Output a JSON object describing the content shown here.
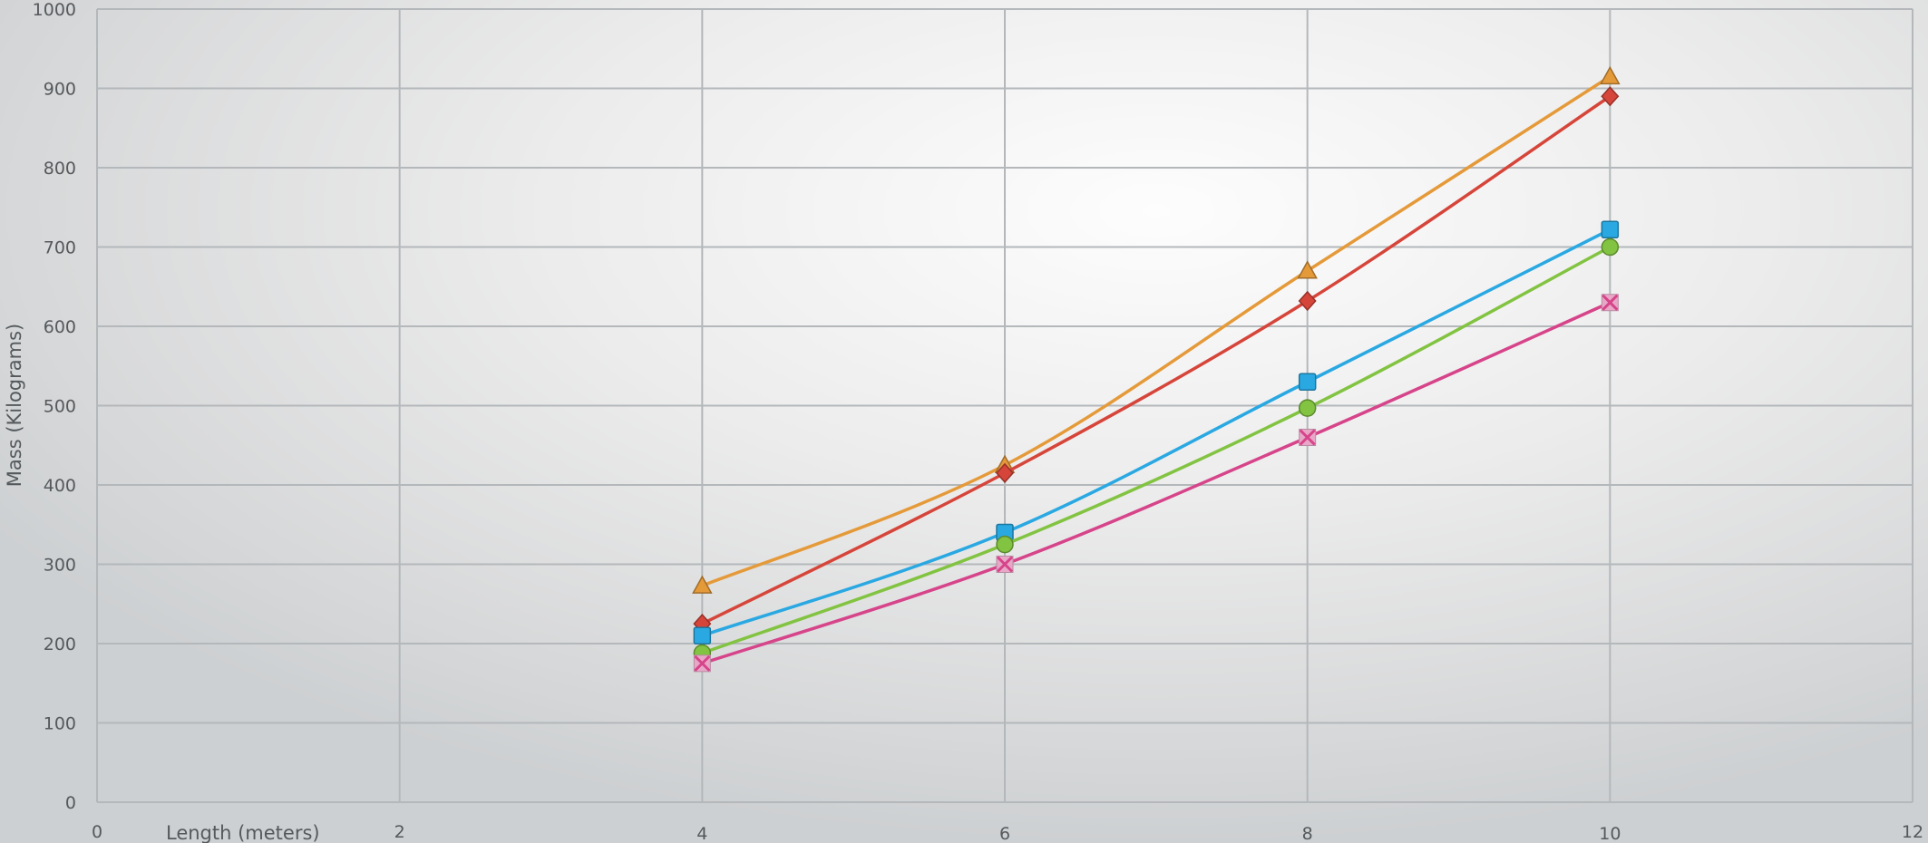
{
  "chart_data": {
    "type": "scatter",
    "xlabel": "Length (meters)",
    "ylabel": "Mass (Kilograms)",
    "xlim": [
      0,
      12
    ],
    "ylim": [
      0,
      1000
    ],
    "x_ticks": [
      0,
      2,
      4,
      6,
      8,
      10,
      12
    ],
    "y_ticks": [
      0,
      100,
      200,
      300,
      400,
      500,
      600,
      700,
      800,
      900,
      1000
    ],
    "grid": true,
    "legend": "none",
    "x": [
      4,
      6,
      8,
      10
    ],
    "series": [
      {
        "marker": "triangle",
        "color": "#e59a3a",
        "values": [
          273,
          425,
          670,
          915
        ]
      },
      {
        "marker": "diamond",
        "color": "#d6453a",
        "values": [
          225,
          415,
          632,
          890
        ]
      },
      {
        "marker": "square",
        "color": "#2aa8e2",
        "values": [
          210,
          340,
          530,
          722
        ]
      },
      {
        "marker": "circle",
        "color": "#82c341",
        "values": [
          188,
          325,
          497,
          700
        ]
      },
      {
        "marker": "x",
        "color": "#d6448a",
        "values": [
          175,
          300,
          460,
          630
        ]
      }
    ]
  }
}
